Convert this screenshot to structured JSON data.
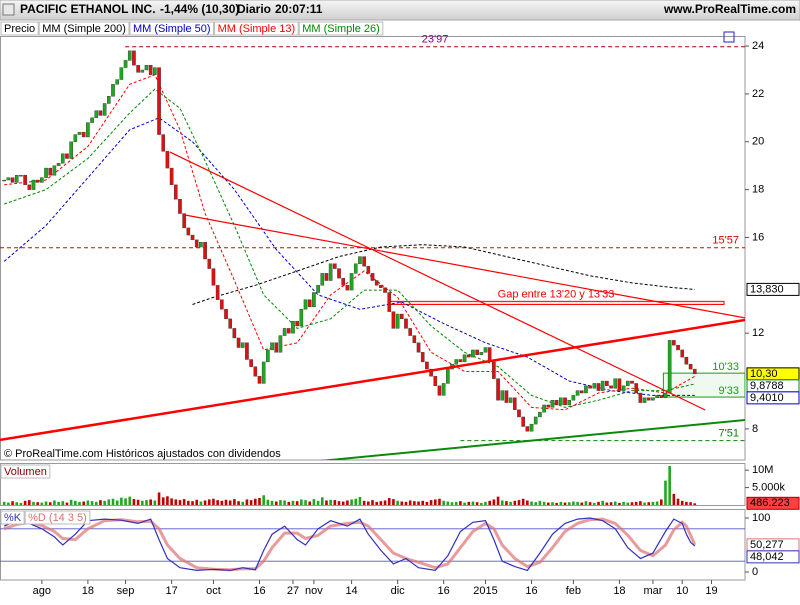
{
  "header": {
    "title": "PACIFIC ETHANOL INC.",
    "change": "-1,44% (10,30)",
    "period": "Diario",
    "time": "20:07:11",
    "site": "www.ProRealTime.com"
  },
  "chart_data": [
    {
      "type": "candlestick",
      "note": "© ProRealTime.com Históricos ajustados con dividendos",
      "xlim": [
        -1,
        177
      ],
      "ylim": [
        6.7,
        24.42
      ],
      "yticks": [
        8,
        12,
        16,
        18,
        20,
        22,
        24
      ],
      "colors": {
        "up": "#1fa81f",
        "down": "#e01010"
      },
      "series": [
        {
          "name": "Precio",
          "values": [
            18.4,
            18.5,
            18.3,
            18.6,
            18.6,
            18.2,
            18.0,
            18.4,
            18.3,
            18.5,
            18.9,
            18.6,
            19.0,
            19.1,
            19.5,
            19.3,
            20.0,
            20.3,
            20.4,
            20.2,
            20.8,
            21.0,
            21.3,
            21.1,
            21.6,
            21.9,
            22.4,
            22.6,
            23.1,
            23.4,
            23.8,
            23.2,
            22.9,
            23.0,
            23.2,
            22.8,
            23.1,
            20.3,
            19.6,
            18.9,
            18.2,
            17.6,
            17.0,
            16.4,
            16.1,
            15.9,
            15.6,
            15.8,
            15.1,
            14.7,
            14.0,
            13.4,
            13.0,
            12.6,
            12.2,
            11.8,
            11.4,
            11.6,
            10.9,
            10.6,
            10.2,
            9.9,
            10.8,
            11.3,
            11.6,
            11.2,
            11.9,
            12.2,
            12.0,
            12.5,
            12.3,
            13.0,
            13.4,
            13.1,
            13.7,
            14.0,
            14.5,
            14.2,
            14.9,
            14.7,
            14.3,
            14.0,
            13.8,
            14.5,
            14.9,
            15.2,
            14.8,
            14.5,
            14.2,
            14.0,
            13.9,
            13.7,
            12.9,
            12.2,
            12.8,
            12.6,
            12.2,
            11.9,
            11.6,
            11.2,
            10.8,
            10.5,
            10.2,
            9.8,
            9.4,
            9.9,
            10.5,
            10.7,
            10.9,
            10.8,
            11.1,
            11.0,
            11.3,
            11.1,
            11.2,
            11.4,
            10.8,
            10.1,
            9.2,
            9.6,
            9.1,
            9.3,
            8.8,
            8.5,
            8.1,
            7.9,
            8.2,
            8.5,
            8.7,
            9.0,
            8.9,
            9.2,
            9.0,
            9.3,
            9.0,
            9.2,
            9.4,
            9.6,
            9.5,
            9.8,
            9.7,
            9.9,
            9.6,
            10.0,
            9.8,
            9.7,
            10.1,
            9.6,
            9.8,
            10.0,
            9.9,
            9.5,
            9.1,
            9.3,
            9.2,
            9.3,
            9.4,
            9.3,
            9.5,
            11.7,
            11.5,
            11.3,
            11.0,
            10.7,
            10.5,
            10.3
          ]
        },
        {
          "name": "MM (Simple 200)",
          "color": "#000000",
          "x": [
            45,
            50,
            60,
            70,
            80,
            90,
            100,
            110,
            120,
            130,
            140,
            150,
            160,
            165
          ],
          "values": [
            13.2,
            13.5,
            14.0,
            14.6,
            15.2,
            15.6,
            15.7,
            15.6,
            15.2,
            14.8,
            14.4,
            14.1,
            13.9,
            13.83
          ]
        },
        {
          "name": "MM (Simple 50)",
          "color": "#0000cc",
          "x": [
            0,
            10,
            20,
            30,
            37,
            45,
            55,
            65,
            75,
            85,
            95,
            105,
            115,
            125,
            135,
            145,
            155,
            165
          ],
          "values": [
            15.0,
            16.5,
            18.5,
            20.5,
            21.0,
            20.0,
            18.0,
            15.5,
            13.6,
            13.0,
            13.3,
            12.4,
            11.6,
            11.0,
            10.0,
            9.6,
            9.4,
            9.401
          ]
        },
        {
          "name": "MM (Simple 13)",
          "color": "#ff0000",
          "x": [
            0,
            10,
            20,
            30,
            36,
            42,
            48,
            55,
            62,
            70,
            78,
            86,
            94,
            102,
            110,
            118,
            126,
            134,
            142,
            150,
            158,
            165
          ],
          "values": [
            18.2,
            18.4,
            19.8,
            22.4,
            22.8,
            20.5,
            17.0,
            14.2,
            11.3,
            11.6,
            13.6,
            14.6,
            13.5,
            11.2,
            10.4,
            10.4,
            8.9,
            8.8,
            9.5,
            9.7,
            9.5,
            10.2
          ]
        },
        {
          "name": "MM (Simple 26)",
          "color": "#008800",
          "x": [
            0,
            10,
            20,
            30,
            36,
            42,
            48,
            55,
            62,
            70,
            78,
            86,
            94,
            102,
            110,
            118,
            126,
            134,
            142,
            150,
            158,
            165
          ],
          "values": [
            17.4,
            18.0,
            19.3,
            21.2,
            22.2,
            21.4,
            19.2,
            16.5,
            13.6,
            12.2,
            12.6,
            13.8,
            13.8,
            12.3,
            11.2,
            10.6,
            9.4,
            8.9,
            9.2,
            9.6,
            9.6,
            9.8788
          ]
        }
      ],
      "levels": [
        {
          "value": 23.97,
          "label": "23'97",
          "x_from": 28.9,
          "color": "#aa0000",
          "label_color": "#800080",
          "label_position": "center"
        },
        {
          "value": 15.57,
          "label": "15'57",
          "x_from": -1,
          "color": "#dd0000",
          "label_color": "#dd0000",
          "label_position": "right"
        },
        {
          "value": 7.51,
          "label": "7'51",
          "x_from": 109,
          "color": "#008800",
          "label_color": "#008800",
          "label_position": "right"
        }
      ],
      "zone": {
        "levels": [
          {
            "value": 10.33,
            "label": "10'33"
          },
          {
            "value": 9.33,
            "label": "9'33"
          }
        ],
        "x_from": 157.5,
        "color": "#1a9a1a"
      },
      "gap": {
        "label": "Gap entre 13'20 y 13'33",
        "low": 13.2,
        "high": 13.33,
        "x": [
          91.7,
          172
        ],
        "color": "#ff0000"
      },
      "trendlines": [
        {
          "x": [
            -1,
            177
          ],
          "y": [
            7.54,
            12.55
          ],
          "color": "#ff0000",
          "width": 2.5
        },
        {
          "x": [
            39.6,
            167.5
          ],
          "y": [
            19.57,
            8.79
          ],
          "color": "#ff0000",
          "width": 1.2
        },
        {
          "x": [
            43.2,
            177
          ],
          "y": [
            16.94,
            12.64
          ],
          "color": "#ff0000",
          "width": 1.2
        },
        {
          "x": [
            75.5,
            177
          ],
          "y": [
            6.66,
            8.37
          ],
          "color": "#0a8a0a",
          "width": 2
        }
      ],
      "badges": [
        {
          "value": 13.83,
          "label": "13,830",
          "fill": "#ffffff",
          "border": "#000000"
        },
        {
          "value": 10.3,
          "label": "10,30",
          "fill": "#ffff00",
          "border": "#000000"
        },
        {
          "value": 9.8788,
          "label": "9,8788",
          "fill": "#ffffff",
          "border": "#008800"
        },
        {
          "value": 9.401,
          "label": "9,4010",
          "fill": "#ffffff",
          "border": "#0000cc"
        }
      ]
    },
    {
      "type": "bar",
      "title": "Volumen",
      "xlim": [
        -1,
        177
      ],
      "ylim": [
        0,
        12.06
      ],
      "yticks": [
        {
          "value": 10,
          "label": "10M"
        },
        {
          "value": 5,
          "label": "5.000k"
        }
      ],
      "colors": {
        "up": "#1fa81f",
        "down": "#c00000"
      },
      "values": [
        0.9,
        0.7,
        1.1,
        0.8,
        0.6,
        1.2,
        1.4,
        0.9,
        0.8,
        0.7,
        1.0,
        0.8,
        1.3,
        0.9,
        1.1,
        0.7,
        1.5,
        1.2,
        0.9,
        1.0,
        1.3,
        1.1,
        0.9,
        1.4,
        1.2,
        1.6,
        1.8,
        1.3,
        2.1,
        1.9,
        2.4,
        1.7,
        1.5,
        1.2,
        1.4,
        1.6,
        1.3,
        3.6,
        2.2,
        2.5,
        1.9,
        1.6,
        1.4,
        1.7,
        1.2,
        1.1,
        1.5,
        1.0,
        1.3,
        1.6,
        1.8,
        1.4,
        1.2,
        1.5,
        1.3,
        1.7,
        1.1,
        0.9,
        1.6,
        1.4,
        1.8,
        2.0,
        2.8,
        1.5,
        1.2,
        1.0,
        1.4,
        1.3,
        0.9,
        1.2,
        1.1,
        1.6,
        1.4,
        1.0,
        1.7,
        1.2,
        2.2,
        1.3,
        1.5,
        1.4,
        1.1,
        1.0,
        1.3,
        1.6,
        1.8,
        2.3,
        1.2,
        1.0,
        1.4,
        0.9,
        1.1,
        1.3,
        2.0,
        1.7,
        1.2,
        1.0,
        0.9,
        1.3,
        1.1,
        1.0,
        1.2,
        0.9,
        1.4,
        1.6,
        1.8,
        1.2,
        1.0,
        0.8,
        0.9,
        1.1,
        0.7,
        0.9,
        1.0,
        0.8,
        0.6,
        0.9,
        1.2,
        1.6,
        2.4,
        1.3,
        1.1,
        0.9,
        1.2,
        1.4,
        1.8,
        1.3,
        1.0,
        0.8,
        1.2,
        0.9,
        0.7,
        0.8,
        0.6,
        0.9,
        0.7,
        0.8,
        1.0,
        0.9,
        0.7,
        1.1,
        0.8,
        0.6,
        0.9,
        1.2,
        0.7,
        0.8,
        1.0,
        0.6,
        0.9,
        0.7,
        0.8,
        0.9,
        1.1,
        0.7,
        0.8,
        0.9,
        1.0,
        1.6,
        7.0,
        11.2,
        3.2,
        1.8,
        1.2,
        0.9,
        0.8,
        0.486223
      ],
      "badges": [
        {
          "value": 0.486223,
          "label": "486.223",
          "fill": "#ff4040",
          "border": "#aa0000"
        }
      ]
    },
    {
      "type": "line",
      "xlim": [
        -1,
        177
      ],
      "ylim": [
        -14.8,
        116.7
      ],
      "yticks": [
        0,
        100
      ],
      "levels": [
        80,
        20
      ],
      "xticks": [
        {
          "value": 9,
          "label": "ago"
        },
        {
          "value": 20,
          "label": "18"
        },
        {
          "value": 29,
          "label": "sep"
        },
        {
          "value": 40,
          "label": "17"
        },
        {
          "value": 50,
          "label": "oct"
        },
        {
          "value": 61,
          "label": "16"
        },
        {
          "value": 69,
          "label": "27"
        },
        {
          "value": 74,
          "label": "nov"
        },
        {
          "value": 83,
          "label": "14"
        },
        {
          "value": 94,
          "label": "dic"
        },
        {
          "value": 105,
          "label": "16"
        },
        {
          "value": 115,
          "label": "2015"
        },
        {
          "value": 126,
          "label": "16"
        },
        {
          "value": 136,
          "label": "feb"
        },
        {
          "value": 147,
          "label": "18"
        },
        {
          "value": 155,
          "label": "mar"
        },
        {
          "value": 162,
          "label": "10"
        },
        {
          "value": 169,
          "label": "19"
        }
      ],
      "x": [
        0,
        3,
        6,
        9,
        12,
        14,
        17,
        20,
        24,
        28,
        32,
        35,
        37,
        39,
        42,
        46,
        50,
        54,
        57,
        60,
        62,
        64,
        67,
        70,
        72,
        75,
        78,
        82,
        85,
        87,
        90,
        93,
        96,
        99,
        103,
        106,
        109,
        112,
        115,
        117,
        119,
        122,
        125,
        128,
        131,
        134,
        137,
        140,
        143,
        146,
        149,
        152,
        155,
        158,
        160,
        162,
        163,
        164,
        165
      ],
      "series": [
        {
          "name": "%K",
          "color": "#3030c0",
          "values": [
            85,
            95,
            90,
            80,
            65,
            50,
            70,
            95,
            98,
            96,
            90,
            98,
            60,
            25,
            8,
            3,
            5,
            3,
            8,
            4,
            40,
            70,
            85,
            60,
            50,
            80,
            95,
            85,
            98,
            70,
            40,
            15,
            25,
            8,
            3,
            30,
            75,
            92,
            95,
            60,
            20,
            10,
            3,
            35,
            70,
            90,
            98,
            100,
            95,
            80,
            45,
            25,
            35,
            75,
            98,
            90,
            70,
            55,
            48.042
          ]
        },
        {
          "name": "%D (14 3 5)",
          "color": "#e07070",
          "values": [
            80,
            88,
            92,
            86,
            75,
            62,
            60,
            80,
            95,
            97,
            93,
            94,
            80,
            50,
            25,
            8,
            5,
            4,
            6,
            6,
            20,
            45,
            72,
            72,
            62,
            68,
            85,
            90,
            92,
            85,
            60,
            35,
            25,
            18,
            8,
            15,
            45,
            75,
            90,
            80,
            50,
            25,
            10,
            18,
            45,
            75,
            90,
            97,
            98,
            90,
            68,
            40,
            30,
            50,
            78,
            92,
            85,
            68,
            50.277
          ]
        }
      ],
      "badges": [
        {
          "value": 50.277,
          "label": "50,277",
          "fill": "#ffffff",
          "border": "#e07070"
        },
        {
          "value": 48.042,
          "label": "48,042",
          "fill": "#ffffff",
          "border": "#3030c0"
        }
      ]
    }
  ]
}
